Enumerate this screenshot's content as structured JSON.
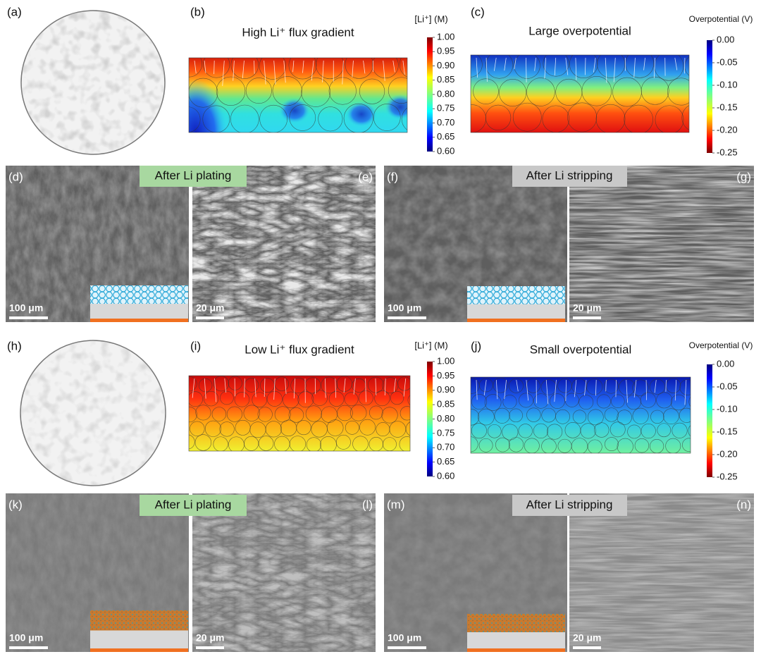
{
  "rows": [
    {
      "sphere": {
        "label": "(a)"
      },
      "maps": [
        {
          "label": "(b)",
          "title": "High Li⁺ flux gradient",
          "colorbar": {
            "title": "[Li⁺] (M)",
            "ticks": [
              "1.00",
              "0.95",
              "0.90",
              "0.85",
              "0.80",
              "0.75",
              "0.70",
              "0.65",
              "0.60"
            ]
          }
        },
        {
          "label": "(c)",
          "title": "Large overpotential",
          "colorbar": {
            "title": "Overpotential (V)",
            "ticks": [
              "0.00",
              "-0.05",
              "-0.10",
              "-0.15",
              "-0.20",
              "-0.25"
            ]
          }
        }
      ],
      "plating": "After Li plating",
      "stripping": "After Li stripping",
      "images": [
        {
          "label": "(d)",
          "scale": "100 μm"
        },
        {
          "label": "(e)",
          "scale": "20 μm"
        },
        {
          "label": "(f)",
          "scale": "100 μm"
        },
        {
          "label": "(g)",
          "scale": "20 μm"
        }
      ]
    },
    {
      "sphere": {
        "label": "(h)"
      },
      "maps": [
        {
          "label": "(i)",
          "title": "Low Li⁺ flux gradient",
          "colorbar": {
            "title": "[Li⁺] (M)",
            "ticks": [
              "1.00",
              "0.95",
              "0.90",
              "0.85",
              "0.80",
              "0.75",
              "0.70",
              "0.65",
              "0.60"
            ]
          }
        },
        {
          "label": "(j)",
          "title": "Small overpotential",
          "colorbar": {
            "title": "Overpotential (V)",
            "ticks": [
              "0.00",
              "-0.05",
              "-0.10",
              "-0.15",
              "-0.20",
              "-0.25"
            ]
          }
        }
      ],
      "plating": "After Li plating",
      "stripping": "After Li stripping",
      "images": [
        {
          "label": "(k)",
          "scale": "100 μm"
        },
        {
          "label": "(l)",
          "scale": "20 μm"
        },
        {
          "label": "(m)",
          "scale": "100 μm"
        },
        {
          "label": "(n)",
          "scale": "20 μm"
        }
      ]
    }
  ]
}
